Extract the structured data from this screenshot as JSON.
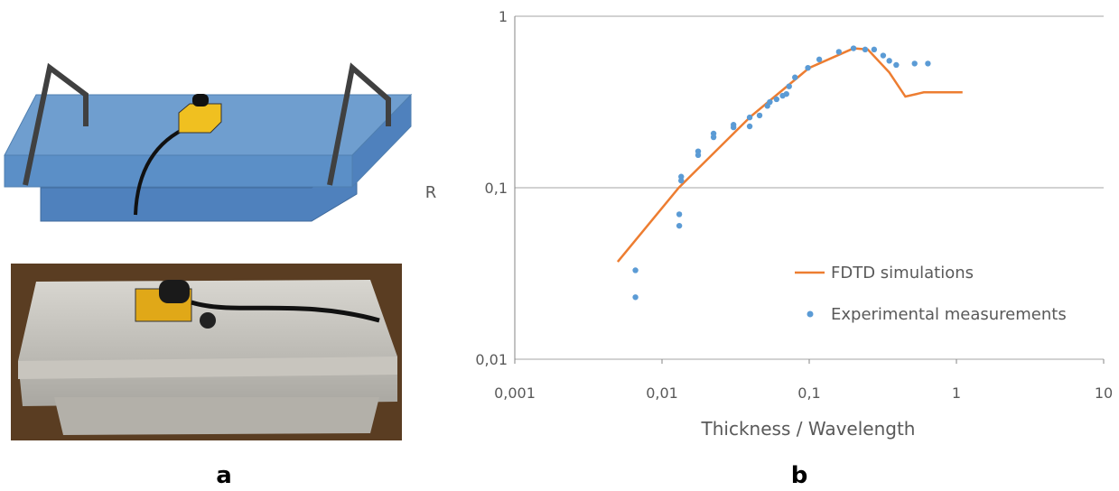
{
  "panel_labels": [
    "a",
    "b"
  ],
  "chart_data": {
    "type": "line",
    "x_label": "Thickness /  Wavelength",
    "y_label": "R",
    "log_x": true,
    "log_y": true,
    "grid": true,
    "legend": "lower right",
    "xlim": [
      0.001,
      10
    ],
    "ylim": [
      0.01,
      1
    ],
    "xticks": [
      {
        "value": 0.001,
        "label": "0,001"
      },
      {
        "value": 0.01,
        "label": "0,01"
      },
      {
        "value": 0.1,
        "label": "0,1"
      },
      1,
      10
    ],
    "yticks": [
      {
        "value": 0.01,
        "label": "0,01"
      },
      {
        "value": 0.1,
        "label": "0,1"
      },
      1
    ],
    "series": [
      {
        "name": "FDTD simulations",
        "kind": "line",
        "color": "#ed7d31",
        "x": [
          0.005,
          0.013,
          0.04,
          0.1,
          0.2,
          0.25,
          0.35,
          0.45,
          0.6,
          1.1
        ],
        "values": [
          0.037,
          0.1,
          0.26,
          0.5,
          0.65,
          0.64,
          0.47,
          0.34,
          0.36,
          0.36
        ]
      },
      {
        "name": "Experimental measurements",
        "kind": "scatter",
        "color": "#5b9bd5",
        "x": [
          0.0066,
          0.0066,
          0.0131,
          0.0131,
          0.0135,
          0.0135,
          0.0176,
          0.0176,
          0.0224,
          0.0224,
          0.0306,
          0.0306,
          0.0394,
          0.0394,
          0.046,
          0.052,
          0.054,
          0.06,
          0.066,
          0.07,
          0.073,
          0.08,
          0.098,
          0.117,
          0.159,
          0.2,
          0.24,
          0.276,
          0.318,
          0.35,
          0.39,
          0.52,
          0.64
        ],
        "values": [
          0.033,
          0.023,
          0.07,
          0.06,
          0.116,
          0.11,
          0.163,
          0.155,
          0.207,
          0.197,
          0.225,
          0.233,
          0.257,
          0.228,
          0.264,
          0.3,
          0.316,
          0.328,
          0.344,
          0.352,
          0.39,
          0.44,
          0.5,
          0.56,
          0.62,
          0.65,
          0.64,
          0.64,
          0.59,
          0.55,
          0.52,
          0.53,
          0.53
        ]
      }
    ]
  }
}
